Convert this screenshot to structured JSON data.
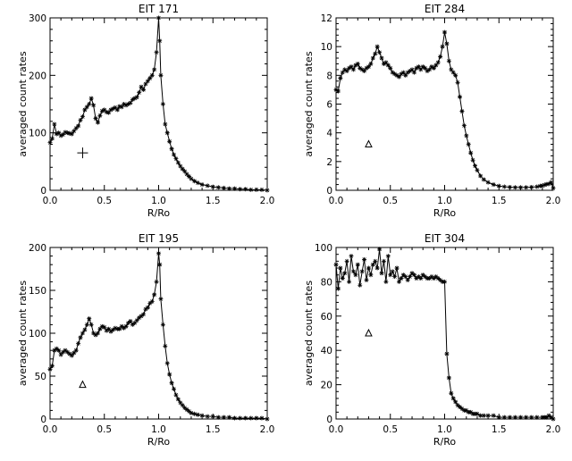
{
  "chart_data": [
    {
      "type": "line",
      "title": "EIT 171",
      "xlabel": "R/Ro",
      "ylabel": "averaged count rates",
      "xlim": [
        0,
        2.0
      ],
      "ylim": [
        0,
        300
      ],
      "xticks": [
        "0.0",
        "0.5",
        "1.0",
        "1.5",
        "2.0"
      ],
      "xtick_values": [
        0,
        0.5,
        1.0,
        1.5,
        2.0
      ],
      "yticks": [
        "0",
        "100",
        "200",
        "300"
      ],
      "ytick_values": [
        0,
        100,
        200,
        300
      ],
      "marker": "asterisk",
      "annotation": {
        "symbol": "plus",
        "x": 0.3,
        "y": 65
      },
      "series": [
        {
          "x": [
            0.0,
            0.02,
            0.04,
            0.06,
            0.08,
            0.1,
            0.12,
            0.14,
            0.16,
            0.18,
            0.2,
            0.22,
            0.24,
            0.26,
            0.28,
            0.3,
            0.32,
            0.34,
            0.36,
            0.38,
            0.4,
            0.42,
            0.44,
            0.46,
            0.48,
            0.5,
            0.52,
            0.54,
            0.56,
            0.58,
            0.6,
            0.62,
            0.64,
            0.66,
            0.68,
            0.7,
            0.72,
            0.74,
            0.76,
            0.78,
            0.8,
            0.82,
            0.84,
            0.86,
            0.88,
            0.9,
            0.92,
            0.94,
            0.96,
            0.98,
            1.0,
            1.01,
            1.02,
            1.04,
            1.06,
            1.08,
            1.1,
            1.12,
            1.14,
            1.16,
            1.18,
            1.2,
            1.22,
            1.24,
            1.26,
            1.28,
            1.3,
            1.33,
            1.36,
            1.4,
            1.45,
            1.5,
            1.55,
            1.6,
            1.65,
            1.7,
            1.75,
            1.8,
            1.85,
            1.9,
            1.95,
            2.0
          ],
          "y": [
            83,
            90,
            115,
            98,
            100,
            95,
            97,
            101,
            100,
            99,
            98,
            103,
            108,
            112,
            122,
            128,
            140,
            145,
            150,
            160,
            148,
            125,
            118,
            130,
            138,
            140,
            136,
            135,
            140,
            142,
            144,
            140,
            146,
            145,
            150,
            148,
            150,
            152,
            158,
            160,
            162,
            170,
            180,
            175,
            185,
            190,
            195,
            200,
            210,
            240,
            300,
            260,
            200,
            150,
            115,
            100,
            85,
            72,
            62,
            55,
            48,
            42,
            37,
            33,
            28,
            24,
            20,
            16,
            13,
            10,
            8,
            6,
            5,
            4,
            3,
            3,
            2,
            2,
            1,
            1,
            1,
            0
          ]
        }
      ]
    },
    {
      "type": "line",
      "title": "EIT 284",
      "xlabel": "R/Ro",
      "ylabel": "averaged count rates",
      "xlim": [
        0,
        2.0
      ],
      "ylim": [
        0,
        12
      ],
      "xticks": [
        "0.0",
        "0.5",
        "1.0",
        "1.5",
        "2.0"
      ],
      "xtick_values": [
        0,
        0.5,
        1.0,
        1.5,
        2.0
      ],
      "yticks": [
        "0",
        "2",
        "4",
        "6",
        "8",
        "10",
        "12"
      ],
      "ytick_values": [
        0,
        2,
        4,
        6,
        8,
        10,
        12
      ],
      "marker": "asterisk",
      "annotation": {
        "symbol": "triangle",
        "x": 0.3,
        "y": 3.2
      },
      "series": [
        {
          "x": [
            0.0,
            0.02,
            0.04,
            0.06,
            0.08,
            0.1,
            0.12,
            0.14,
            0.16,
            0.18,
            0.2,
            0.22,
            0.24,
            0.26,
            0.28,
            0.3,
            0.32,
            0.34,
            0.36,
            0.38,
            0.4,
            0.42,
            0.44,
            0.46,
            0.48,
            0.5,
            0.52,
            0.54,
            0.56,
            0.58,
            0.6,
            0.62,
            0.64,
            0.66,
            0.68,
            0.7,
            0.72,
            0.74,
            0.76,
            0.78,
            0.8,
            0.82,
            0.84,
            0.86,
            0.88,
            0.9,
            0.92,
            0.94,
            0.96,
            0.98,
            1.0,
            1.02,
            1.04,
            1.06,
            1.08,
            1.1,
            1.12,
            1.14,
            1.16,
            1.18,
            1.2,
            1.22,
            1.24,
            1.26,
            1.28,
            1.3,
            1.33,
            1.36,
            1.4,
            1.45,
            1.5,
            1.55,
            1.6,
            1.65,
            1.7,
            1.75,
            1.8,
            1.85,
            1.88,
            1.9,
            1.92,
            1.94,
            1.96,
            1.98,
            2.0
          ],
          "y": [
            7.0,
            6.9,
            7.8,
            8.2,
            8.4,
            8.3,
            8.5,
            8.6,
            8.4,
            8.7,
            8.8,
            8.5,
            8.4,
            8.3,
            8.5,
            8.6,
            8.8,
            9.2,
            9.5,
            10.0,
            9.6,
            9.2,
            8.8,
            8.9,
            8.7,
            8.5,
            8.2,
            8.1,
            8.0,
            7.9,
            8.1,
            8.2,
            8.0,
            8.2,
            8.3,
            8.4,
            8.2,
            8.5,
            8.6,
            8.4,
            8.6,
            8.5,
            8.3,
            8.4,
            8.6,
            8.5,
            8.7,
            8.9,
            9.3,
            10.0,
            11.0,
            10.2,
            9.0,
            8.4,
            8.2,
            8.0,
            7.5,
            6.5,
            5.5,
            4.5,
            3.8,
            3.2,
            2.6,
            2.1,
            1.7,
            1.4,
            1.0,
            0.75,
            0.55,
            0.4,
            0.3,
            0.25,
            0.22,
            0.2,
            0.2,
            0.2,
            0.22,
            0.25,
            0.3,
            0.32,
            0.38,
            0.42,
            0.45,
            0.55,
            0.15
          ]
        }
      ]
    },
    {
      "type": "line",
      "title": "EIT 195",
      "xlabel": "R/Ro",
      "ylabel": "averaged count rates",
      "xlim": [
        0,
        2.0
      ],
      "ylim": [
        0,
        200
      ],
      "xticks": [
        "0.0",
        "0.5",
        "1.0",
        "1.5",
        "2.0"
      ],
      "xtick_values": [
        0,
        0.5,
        1.0,
        1.5,
        2.0
      ],
      "yticks": [
        "0",
        "50",
        "100",
        "150",
        "200"
      ],
      "ytick_values": [
        0,
        50,
        100,
        150,
        200
      ],
      "marker": "asterisk",
      "annotation": {
        "symbol": "triangle",
        "x": 0.3,
        "y": 40
      },
      "series": [
        {
          "x": [
            0.0,
            0.02,
            0.04,
            0.06,
            0.08,
            0.1,
            0.12,
            0.14,
            0.16,
            0.18,
            0.2,
            0.22,
            0.24,
            0.26,
            0.28,
            0.3,
            0.32,
            0.34,
            0.36,
            0.38,
            0.4,
            0.42,
            0.44,
            0.46,
            0.48,
            0.5,
            0.52,
            0.54,
            0.56,
            0.58,
            0.6,
            0.62,
            0.64,
            0.66,
            0.68,
            0.7,
            0.72,
            0.74,
            0.76,
            0.78,
            0.8,
            0.82,
            0.84,
            0.86,
            0.88,
            0.9,
            0.92,
            0.94,
            0.96,
            0.98,
            1.0,
            1.01,
            1.02,
            1.04,
            1.06,
            1.08,
            1.1,
            1.12,
            1.14,
            1.16,
            1.18,
            1.2,
            1.22,
            1.24,
            1.26,
            1.28,
            1.3,
            1.33,
            1.36,
            1.4,
            1.45,
            1.5,
            1.55,
            1.6,
            1.65,
            1.7,
            1.75,
            1.8,
            1.85,
            1.9,
            1.95,
            2.0
          ],
          "y": [
            58,
            62,
            80,
            82,
            80,
            75,
            78,
            80,
            78,
            76,
            74,
            77,
            80,
            88,
            95,
            100,
            104,
            110,
            117,
            110,
            100,
            98,
            100,
            105,
            108,
            107,
            103,
            105,
            102,
            104,
            106,
            105,
            105,
            108,
            106,
            108,
            112,
            114,
            110,
            112,
            115,
            118,
            120,
            122,
            128,
            130,
            135,
            137,
            145,
            160,
            193,
            180,
            140,
            110,
            85,
            65,
            52,
            42,
            35,
            28,
            23,
            19,
            16,
            13,
            11,
            9,
            7,
            6,
            5,
            4,
            3,
            3,
            2,
            2,
            2,
            1,
            1,
            1,
            1,
            1,
            1,
            0
          ]
        }
      ]
    },
    {
      "type": "line",
      "title": "EIT 304",
      "xlabel": "R/Ro",
      "ylabel": "averaged count rates",
      "xlim": [
        0,
        2.0
      ],
      "ylim": [
        0,
        100
      ],
      "xticks": [
        "0.0",
        "0.5",
        "1.0",
        "1.5",
        "2.0"
      ],
      "xtick_values": [
        0,
        0.5,
        1.0,
        1.5,
        2.0
      ],
      "yticks": [
        "0",
        "20",
        "40",
        "60",
        "80",
        "100"
      ],
      "ytick_values": [
        0,
        20,
        40,
        60,
        80,
        100
      ],
      "marker": "asterisk",
      "annotation": {
        "symbol": "triangle",
        "x": 0.3,
        "y": 50
      },
      "series": [
        {
          "x": [
            0.0,
            0.02,
            0.04,
            0.06,
            0.08,
            0.1,
            0.12,
            0.14,
            0.16,
            0.18,
            0.2,
            0.22,
            0.24,
            0.26,
            0.28,
            0.3,
            0.32,
            0.34,
            0.36,
            0.38,
            0.4,
            0.42,
            0.44,
            0.46,
            0.48,
            0.5,
            0.52,
            0.54,
            0.56,
            0.58,
            0.6,
            0.62,
            0.64,
            0.66,
            0.68,
            0.7,
            0.72,
            0.74,
            0.76,
            0.78,
            0.8,
            0.82,
            0.84,
            0.86,
            0.88,
            0.9,
            0.92,
            0.94,
            0.96,
            0.98,
            1.0,
            1.02,
            1.04,
            1.06,
            1.08,
            1.1,
            1.12,
            1.14,
            1.16,
            1.18,
            1.2,
            1.22,
            1.24,
            1.26,
            1.28,
            1.3,
            1.33,
            1.36,
            1.4,
            1.45,
            1.5,
            1.55,
            1.6,
            1.65,
            1.7,
            1.75,
            1.8,
            1.85,
            1.9,
            1.92,
            1.94,
            1.96,
            1.98,
            2.0
          ],
          "y": [
            90,
            76,
            88,
            82,
            85,
            92,
            80,
            95,
            86,
            84,
            90,
            78,
            86,
            93,
            81,
            88,
            84,
            90,
            92,
            88,
            99,
            85,
            92,
            80,
            95,
            84,
            86,
            83,
            88,
            80,
            82,
            84,
            83,
            81,
            83,
            85,
            84,
            82,
            83,
            82,
            84,
            83,
            82,
            82,
            83,
            82,
            83,
            82,
            81,
            80,
            80,
            38,
            24,
            15,
            12,
            10,
            8,
            7,
            6,
            5,
            5,
            4,
            4,
            3,
            3,
            3,
            2,
            2,
            2,
            2,
            1,
            1,
            1,
            1,
            1,
            1,
            1,
            1,
            1,
            1,
            1,
            2,
            1,
            0
          ]
        }
      ]
    }
  ]
}
